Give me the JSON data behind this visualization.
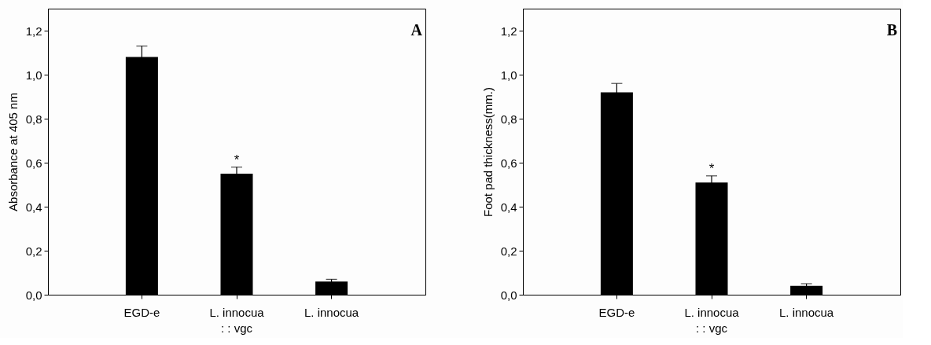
{
  "chart_data": [
    {
      "type": "bar",
      "title": "A",
      "ylabel": "Absorbance at 405 nm",
      "categories": [
        "EGD-e",
        "L. innocua\n: : vgc",
        "L. innocua"
      ],
      "values": [
        1.08,
        0.55,
        0.06
      ],
      "errors": [
        0.05,
        0.03,
        0.01
      ],
      "color": "#000000",
      "ylim": [
        0,
        1.3
      ],
      "yticks": [
        {
          "value": 0,
          "label": "0,0"
        },
        {
          "value": 0.2,
          "label": "0,2"
        },
        {
          "value": 0.4,
          "label": "0,4"
        },
        {
          "value": 0.6,
          "label": "0,6"
        },
        {
          "value": 0.8,
          "label": "0,8"
        },
        {
          "value": 1.0,
          "label": "1,0"
        },
        {
          "value": 1.2,
          "label": "1,2"
        }
      ],
      "annotations": [
        {
          "text": "*",
          "x": "L. innocua\n: : vgc",
          "y": 0.55
        }
      ],
      "grid": false
    },
    {
      "type": "bar",
      "title": "B",
      "ylabel": "Foot pad  thickness(mm.)",
      "categories": [
        "EGD-e",
        "L. innocua\n: : vgc",
        "L. innocua"
      ],
      "values": [
        0.92,
        0.51,
        0.04
      ],
      "errors": [
        0.04,
        0.03,
        0.01
      ],
      "color": "#000000",
      "ylim": [
        0,
        1.3
      ],
      "yticks": [
        {
          "value": 0,
          "label": "0,0"
        },
        {
          "value": 0.2,
          "label": "0,2"
        },
        {
          "value": 0.4,
          "label": "0,4"
        },
        {
          "value": 0.6,
          "label": "0,6"
        },
        {
          "value": 0.8,
          "label": "0,8"
        },
        {
          "value": 1.0,
          "label": "1,0"
        },
        {
          "value": 1.2,
          "label": "1,2"
        }
      ],
      "annotations": [
        {
          "text": "*",
          "x": "L. innocua\n: : vgc",
          "y": 0.51
        }
      ],
      "grid": false
    }
  ]
}
